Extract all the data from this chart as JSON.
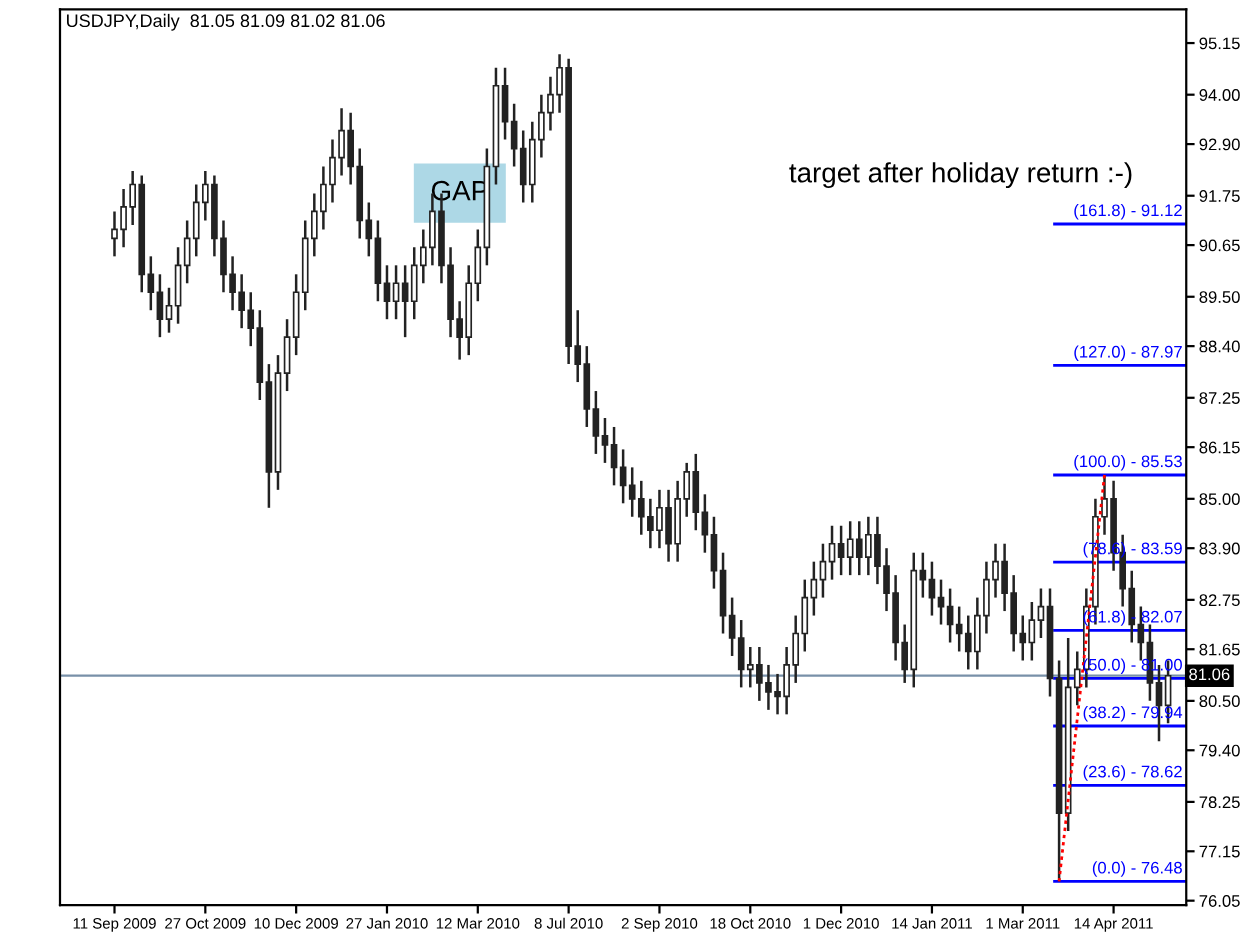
{
  "chart_data": {
    "type": "candlestick",
    "title": "USDJPY,Daily  81.05 81.09 81.02 81.06",
    "color": "#222222",
    "categories": [
      "11 Sep 2009",
      null,
      null,
      null,
      null,
      null,
      null,
      null,
      null,
      null,
      "27 Oct 2009",
      null,
      null,
      null,
      null,
      null,
      null,
      null,
      null,
      null,
      "10 Dec 2009",
      null,
      null,
      null,
      null,
      null,
      null,
      null,
      null,
      null,
      "27 Jan 2010",
      null,
      null,
      null,
      null,
      null,
      null,
      null,
      null,
      null,
      "12 Mar 2010",
      null,
      null,
      null,
      null,
      null,
      null,
      null,
      null,
      null,
      "8 Jul 2010",
      null,
      null,
      null,
      null,
      null,
      null,
      null,
      null,
      null,
      "2 Sep 2010",
      null,
      null,
      null,
      null,
      null,
      null,
      null,
      null,
      null,
      "18 Oct 2010",
      null,
      null,
      null,
      null,
      null,
      null,
      null,
      null,
      null,
      "1 Dec 2010",
      null,
      null,
      null,
      null,
      null,
      null,
      null,
      null,
      null,
      "14 Jan 2011",
      null,
      null,
      null,
      null,
      null,
      null,
      null,
      null,
      null,
      "1 Mar 2011",
      null,
      null,
      null,
      null,
      null,
      null,
      null,
      null,
      null,
      "14 Apr 2011",
      null,
      null,
      null,
      null,
      null,
      null
    ],
    "ohlc": [
      [
        90.8,
        91.4,
        90.4,
        91.0
      ],
      [
        91.0,
        91.9,
        90.6,
        91.5
      ],
      [
        91.5,
        92.3,
        91.1,
        92.0
      ],
      [
        92.0,
        92.2,
        89.6,
        90.0
      ],
      [
        90.0,
        90.4,
        89.2,
        89.6
      ],
      [
        89.6,
        90.0,
        88.6,
        89.0
      ],
      [
        89.0,
        89.7,
        88.7,
        89.3
      ],
      [
        89.3,
        90.6,
        88.9,
        90.2
      ],
      [
        90.2,
        91.2,
        89.8,
        90.8
      ],
      [
        90.8,
        92.0,
        90.4,
        91.6
      ],
      [
        91.6,
        92.3,
        91.2,
        92.0
      ],
      [
        92.0,
        92.2,
        90.4,
        90.8
      ],
      [
        90.8,
        91.2,
        89.6,
        90.0
      ],
      [
        90.0,
        90.4,
        89.2,
        89.6
      ],
      [
        89.6,
        90.0,
        88.8,
        89.2
      ],
      [
        89.2,
        89.6,
        88.4,
        88.8
      ],
      [
        88.8,
        89.2,
        87.2,
        87.6
      ],
      [
        87.6,
        88.0,
        84.8,
        85.6
      ],
      [
        85.6,
        88.2,
        85.2,
        87.8
      ],
      [
        87.8,
        89.0,
        87.4,
        88.6
      ],
      [
        88.6,
        90.0,
        88.2,
        89.6
      ],
      [
        89.6,
        91.2,
        89.2,
        90.8
      ],
      [
        90.8,
        91.8,
        90.4,
        91.4
      ],
      [
        91.4,
        92.4,
        91.0,
        92.0
      ],
      [
        92.0,
        93.0,
        91.6,
        92.6
      ],
      [
        92.6,
        93.7,
        92.2,
        93.2
      ],
      [
        93.2,
        93.6,
        92.0,
        92.4
      ],
      [
        92.4,
        92.8,
        90.8,
        91.2
      ],
      [
        91.2,
        91.6,
        90.4,
        90.8
      ],
      [
        90.8,
        91.2,
        89.4,
        89.8
      ],
      [
        89.8,
        90.2,
        89.0,
        89.4
      ],
      [
        89.4,
        90.2,
        89.0,
        89.8
      ],
      [
        89.8,
        90.2,
        88.6,
        89.4
      ],
      [
        89.4,
        90.6,
        89.0,
        90.2
      ],
      [
        90.2,
        91.0,
        89.8,
        90.6
      ],
      [
        90.6,
        91.8,
        90.2,
        91.4
      ],
      [
        91.4,
        91.8,
        89.8,
        90.2
      ],
      [
        90.2,
        90.6,
        88.6,
        89.0
      ],
      [
        89.0,
        89.4,
        88.1,
        88.6
      ],
      [
        88.6,
        90.2,
        88.2,
        89.8
      ],
      [
        89.8,
        91.0,
        89.4,
        90.6
      ],
      [
        90.6,
        92.8,
        90.2,
        92.4
      ],
      [
        92.4,
        94.6,
        92.0,
        94.2
      ],
      [
        94.2,
        94.6,
        93.0,
        93.4
      ],
      [
        93.4,
        93.8,
        92.4,
        92.8
      ],
      [
        92.8,
        93.2,
        91.6,
        92.0
      ],
      [
        92.0,
        93.4,
        91.6,
        93.0
      ],
      [
        93.0,
        94.0,
        92.6,
        93.6
      ],
      [
        93.6,
        94.4,
        93.2,
        94.0
      ],
      [
        94.0,
        94.9,
        93.6,
        94.6
      ],
      [
        94.6,
        94.8,
        88.0,
        88.4
      ],
      [
        88.4,
        89.2,
        87.6,
        88.0
      ],
      [
        88.0,
        88.4,
        86.6,
        87.0
      ],
      [
        87.0,
        87.4,
        86.0,
        86.4
      ],
      [
        86.4,
        86.8,
        85.8,
        86.2
      ],
      [
        86.2,
        86.6,
        85.3,
        85.7
      ],
      [
        85.7,
        86.1,
        84.9,
        85.3
      ],
      [
        85.3,
        85.7,
        84.6,
        85.0
      ],
      [
        85.0,
        85.4,
        84.2,
        84.6
      ],
      [
        84.6,
        85.0,
        83.9,
        84.3
      ],
      [
        84.3,
        85.2,
        83.9,
        84.8
      ],
      [
        84.8,
        85.2,
        83.6,
        84.0
      ],
      [
        84.0,
        85.4,
        83.6,
        85.0
      ],
      [
        85.0,
        85.8,
        84.6,
        85.6
      ],
      [
        85.6,
        86.0,
        84.3,
        84.7
      ],
      [
        84.7,
        85.1,
        83.8,
        84.2
      ],
      [
        84.2,
        84.6,
        83.0,
        83.4
      ],
      [
        83.4,
        83.8,
        82.0,
        82.4
      ],
      [
        82.4,
        82.8,
        81.5,
        81.9
      ],
      [
        81.9,
        82.3,
        80.8,
        81.2
      ],
      [
        81.2,
        81.7,
        80.8,
        81.3
      ],
      [
        81.3,
        81.7,
        80.5,
        80.9
      ],
      [
        80.9,
        81.3,
        80.3,
        80.7
      ],
      [
        80.7,
        81.1,
        80.2,
        80.6
      ],
      [
        80.6,
        81.7,
        80.2,
        81.3
      ],
      [
        81.3,
        82.4,
        80.9,
        82.0
      ],
      [
        82.0,
        83.2,
        81.6,
        82.8
      ],
      [
        82.8,
        83.6,
        82.4,
        83.2
      ],
      [
        83.2,
        84.0,
        82.8,
        83.6
      ],
      [
        83.6,
        84.4,
        83.2,
        84.0
      ],
      [
        84.0,
        84.4,
        83.3,
        83.7
      ],
      [
        83.7,
        84.5,
        83.3,
        84.1
      ],
      [
        84.1,
        84.5,
        83.3,
        83.7
      ],
      [
        83.7,
        84.6,
        83.3,
        84.2
      ],
      [
        84.2,
        84.6,
        83.1,
        83.5
      ],
      [
        83.5,
        83.9,
        82.5,
        82.9
      ],
      [
        82.9,
        83.3,
        81.4,
        81.8
      ],
      [
        81.8,
        82.2,
        80.9,
        81.2
      ],
      [
        81.2,
        83.8,
        80.8,
        83.4
      ],
      [
        83.4,
        83.8,
        82.8,
        83.2
      ],
      [
        83.2,
        83.6,
        82.4,
        82.8
      ],
      [
        82.8,
        83.2,
        82.2,
        82.6
      ],
      [
        82.6,
        83.0,
        81.8,
        82.2
      ],
      [
        82.2,
        82.6,
        81.6,
        82.0
      ],
      [
        82.0,
        82.4,
        81.2,
        81.6
      ],
      [
        81.6,
        82.8,
        81.2,
        82.4
      ],
      [
        82.4,
        83.6,
        82.0,
        83.2
      ],
      [
        83.2,
        84.0,
        82.8,
        83.6
      ],
      [
        83.6,
        84.0,
        82.5,
        82.9
      ],
      [
        82.9,
        83.3,
        81.6,
        82.0
      ],
      [
        82.0,
        82.4,
        81.4,
        81.8
      ],
      [
        81.8,
        82.7,
        81.4,
        82.3
      ],
      [
        82.3,
        83.0,
        81.9,
        82.6
      ],
      [
        82.6,
        83.0,
        80.6,
        81.0
      ],
      [
        81.0,
        81.4,
        76.48,
        78.0
      ],
      [
        78.0,
        81.9,
        77.6,
        80.8
      ],
      [
        80.8,
        81.6,
        80.4,
        81.2
      ],
      [
        81.2,
        83.0,
        80.8,
        82.6
      ],
      [
        82.6,
        85.0,
        82.2,
        84.6
      ],
      [
        84.6,
        85.53,
        84.2,
        85.0
      ],
      [
        85.0,
        85.4,
        83.4,
        83.8
      ],
      [
        83.8,
        84.2,
        82.6,
        83.0
      ],
      [
        83.0,
        83.4,
        81.8,
        82.2
      ],
      [
        82.2,
        82.6,
        81.4,
        81.8
      ],
      [
        81.8,
        82.2,
        80.5,
        80.9
      ],
      [
        80.9,
        81.3,
        79.6,
        80.4
      ],
      [
        80.4,
        81.4,
        80.0,
        81.06
      ]
    ],
    "series": [
      {
        "type": "line",
        "color": "#ff0000",
        "line_style": "dotted",
        "values": [
          null,
          null,
          null,
          null,
          null,
          null,
          null,
          null,
          null,
          null,
          null,
          null,
          null,
          null,
          null,
          null,
          null,
          null,
          null,
          null,
          null,
          null,
          null,
          null,
          null,
          null,
          null,
          null,
          null,
          null,
          null,
          null,
          null,
          null,
          null,
          null,
          null,
          null,
          null,
          null,
          null,
          null,
          null,
          null,
          null,
          null,
          null,
          null,
          null,
          null,
          null,
          null,
          null,
          null,
          null,
          null,
          null,
          null,
          null,
          null,
          null,
          null,
          null,
          null,
          null,
          null,
          null,
          null,
          null,
          null,
          null,
          null,
          null,
          null,
          null,
          null,
          null,
          null,
          null,
          null,
          null,
          null,
          null,
          null,
          null,
          null,
          null,
          null,
          null,
          null,
          null,
          null,
          null,
          null,
          null,
          null,
          null,
          null,
          null,
          null,
          null,
          null,
          null,
          null,
          76.48,
          null,
          null,
          null,
          null,
          85.53,
          null,
          null,
          null,
          null,
          null,
          null,
          null
        ]
      }
    ],
    "ylim": [
      75.95,
      95.9
    ],
    "yticks": [
      95.15,
      {
        "value": 94.0,
        "label": "94.00"
      },
      {
        "value": 92.9,
        "label": "92.90"
      },
      91.75,
      90.65,
      {
        "value": 89.5,
        "label": "89.50"
      },
      {
        "value": 88.4,
        "label": "88.40"
      },
      87.25,
      86.15,
      {
        "value": 85.0,
        "label": "85.00"
      },
      {
        "value": 83.9,
        "label": "83.90"
      },
      82.75,
      81.65,
      {
        "value": 80.5,
        "label": "80.50"
      },
      {
        "value": 79.4,
        "label": "79.40"
      },
      78.25,
      77.15,
      76.05
    ],
    "ref_lines": [
      {
        "axis": "y",
        "value": 81.06,
        "label": "81.06",
        "color": "#7890a8"
      },
      {
        "axis": "y",
        "value": 91.12,
        "color": "#0000ff"
      },
      {
        "axis": "y",
        "value": 87.97,
        "color": "#0000ff"
      },
      {
        "axis": "y",
        "value": 85.53,
        "color": "#0000ff"
      },
      {
        "axis": "y",
        "value": 83.59,
        "color": "#0000ff"
      },
      {
        "axis": "y",
        "value": 82.07,
        "color": "#0000ff"
      },
      {
        "axis": "y",
        "value": 81.0,
        "color": "#0000ff"
      },
      {
        "axis": "y",
        "value": 79.94,
        "color": "#0000ff"
      },
      {
        "axis": "y",
        "value": 78.62,
        "color": "#0000ff"
      },
      {
        "axis": "y",
        "value": 76.48,
        "color": "#0000ff"
      }
    ],
    "annotations": [
      "GAP",
      "target after holiday return :-)",
      {
        "text": "(161.8) - 91.12",
        "y": 91.12
      },
      {
        "text": "(127.0) - 87.97",
        "y": 87.97
      },
      {
        "text": "(100.0) - 85.53",
        "y": 85.53
      },
      {
        "text": "(78.6) - 83.59",
        "y": 83.59
      },
      {
        "text": "(61.8) - 82.07",
        "y": 82.07
      },
      {
        "text": "(50.0) - 81.00",
        "y": 81.0
      },
      {
        "text": "(38.2) - 79.94",
        "y": 79.94
      },
      {
        "text": "(23.6) - 78.62",
        "y": 78.62
      },
      {
        "text": "(0.0) - 76.48",
        "y": 76.48
      }
    ],
    "grid": false,
    "legend": false
  }
}
